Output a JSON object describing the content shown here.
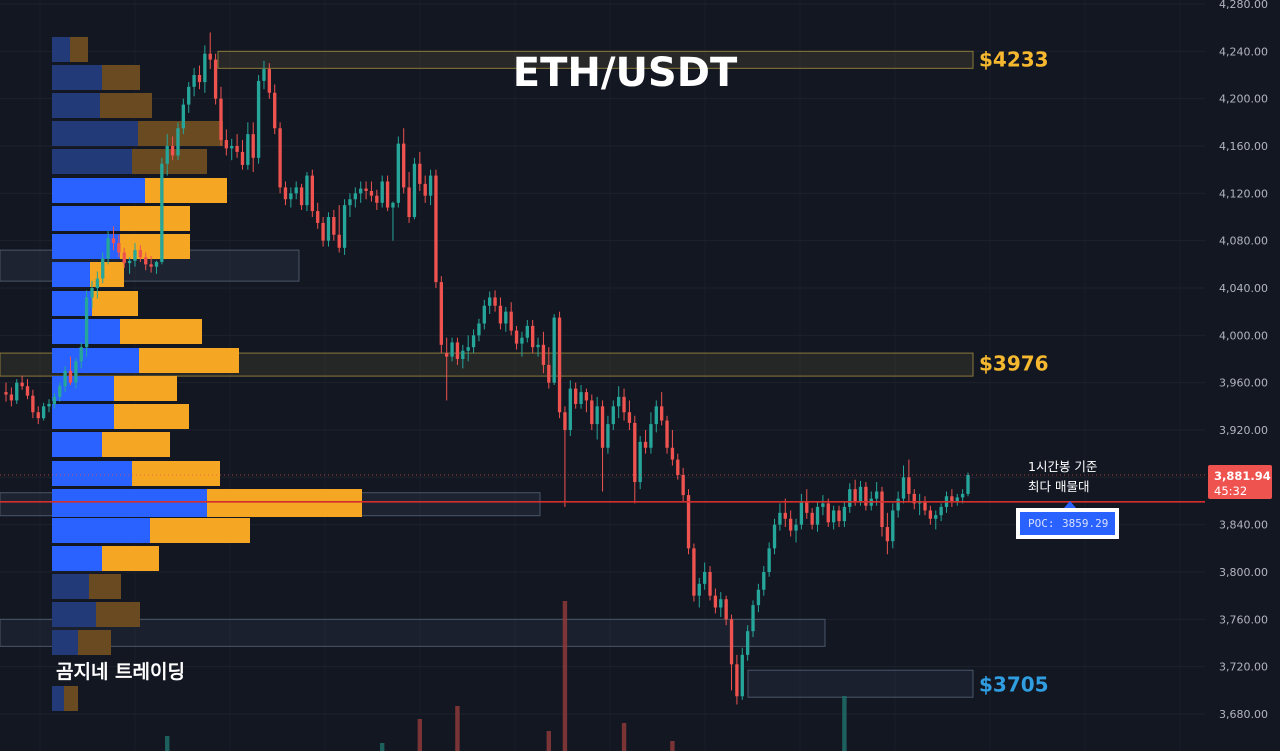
{
  "title": "ETH/USDT",
  "brand": "곰지네 트레이딩",
  "annotation": {
    "line1": "1시간봉 기준",
    "line2": "최다 매물대"
  },
  "poc": {
    "label": "POC:",
    "value": "3859.29"
  },
  "current_price": {
    "value": "3,881.94",
    "countdown": "45:32"
  },
  "zones": [
    {
      "label": "$4233",
      "price": 4233,
      "color": "#f5b82e"
    },
    {
      "label": "$3976",
      "price": 3976,
      "color": "#f5b82e"
    },
    {
      "label": "$3705",
      "price": 3705,
      "color": "#2f9de0"
    }
  ],
  "colors": {
    "background": "#131722",
    "up": "#26a69a",
    "down": "#ef5350",
    "buy_volume": "#2962ff",
    "sell_volume": "#f5a623",
    "poc_line": "#d32f2f"
  },
  "chart_data": {
    "type": "candlestick",
    "y_axis": {
      "range": [
        3665,
        4280
      ],
      "ticks": [
        "4,280.00",
        "4,240.00",
        "4,200.00",
        "4,160.00",
        "4,120.00",
        "4,080.00",
        "4,040.00",
        "4,000.00",
        "3,960.00",
        "3,920.00",
        "3,880.00",
        "3,840.00",
        "3,800.00",
        "3,760.00",
        "3,720.00",
        "3,680.00"
      ]
    },
    "series_ohlc": [
      [
        3952,
        3960,
        3944,
        3950
      ],
      [
        3950,
        3956,
        3940,
        3945
      ],
      [
        3945,
        3963,
        3942,
        3960
      ],
      [
        3960,
        3966,
        3954,
        3957
      ],
      [
        3957,
        3963,
        3946,
        3949
      ],
      [
        3949,
        3954,
        3930,
        3935
      ],
      [
        3935,
        3940,
        3925,
        3930
      ],
      [
        3930,
        3943,
        3928,
        3940
      ],
      [
        3940,
        3946,
        3935,
        3942
      ],
      [
        3942,
        3951,
        3938,
        3948
      ],
      [
        3948,
        3960,
        3944,
        3957
      ],
      [
        3957,
        3974,
        3952,
        3970
      ],
      [
        3970,
        3982,
        3958,
        3960
      ],
      [
        3960,
        3981,
        3955,
        3978
      ],
      [
        3978,
        3994,
        3972,
        3990
      ],
      [
        3990,
        4038,
        3982,
        4032
      ],
      [
        4032,
        4046,
        4023,
        4040
      ],
      [
        4040,
        4054,
        4031,
        4048
      ],
      [
        4048,
        4070,
        4044,
        4065
      ],
      [
        4065,
        4088,
        4060,
        4082
      ],
      [
        4082,
        4092,
        4072,
        4078
      ],
      [
        4078,
        4085,
        4066,
        4070
      ],
      [
        4070,
        4074,
        4057,
        4061
      ],
      [
        4061,
        4066,
        4052,
        4063
      ],
      [
        4063,
        4078,
        4058,
        4072
      ],
      [
        4072,
        4076,
        4062,
        4066
      ],
      [
        4066,
        4070,
        4055,
        4060
      ],
      [
        4060,
        4067,
        4053,
        4058
      ],
      [
        4058,
        4063,
        4052,
        4062
      ],
      [
        4062,
        4150,
        4060,
        4145
      ],
      [
        4145,
        4170,
        4135,
        4160
      ],
      [
        4160,
        4168,
        4148,
        4152
      ],
      [
        4152,
        4180,
        4148,
        4175
      ],
      [
        4175,
        4200,
        4170,
        4195
      ],
      [
        4195,
        4214,
        4188,
        4210
      ],
      [
        4210,
        4226,
        4202,
        4220
      ],
      [
        4220,
        4228,
        4208,
        4214
      ],
      [
        4214,
        4245,
        4205,
        4238
      ],
      [
        4238,
        4256,
        4225,
        4233
      ],
      [
        4233,
        4238,
        4195,
        4200
      ],
      [
        4200,
        4210,
        4160,
        4165
      ],
      [
        4165,
        4174,
        4152,
        4158
      ],
      [
        4158,
        4166,
        4148,
        4160
      ],
      [
        4160,
        4170,
        4150,
        4155
      ],
      [
        4155,
        4165,
        4140,
        4144
      ],
      [
        4144,
        4180,
        4140,
        4170
      ],
      [
        4170,
        4180,
        4138,
        4150
      ],
      [
        4150,
        4220,
        4145,
        4215
      ],
      [
        4215,
        4232,
        4208,
        4225
      ],
      [
        4225,
        4230,
        4200,
        4205
      ],
      [
        4205,
        4212,
        4170,
        4175
      ],
      [
        4175,
        4180,
        4120,
        4125
      ],
      [
        4125,
        4130,
        4110,
        4115
      ],
      [
        4115,
        4125,
        4108,
        4120
      ],
      [
        4120,
        4130,
        4115,
        4125
      ],
      [
        4125,
        4128,
        4106,
        4110
      ],
      [
        4110,
        4138,
        4105,
        4135
      ],
      [
        4135,
        4140,
        4100,
        4105
      ],
      [
        4105,
        4112,
        4090,
        4095
      ],
      [
        4095,
        4100,
        4075,
        4080
      ],
      [
        4080,
        4104,
        4075,
        4100
      ],
      [
        4100,
        4106,
        4080,
        4085
      ],
      [
        4085,
        4110,
        4070,
        4074
      ],
      [
        4074,
        4115,
        4068,
        4110
      ],
      [
        4110,
        4120,
        4100,
        4115
      ],
      [
        4115,
        4125,
        4108,
        4120
      ],
      [
        4120,
        4130,
        4112,
        4124
      ],
      [
        4124,
        4130,
        4115,
        4122
      ],
      [
        4122,
        4130,
        4113,
        4118
      ],
      [
        4118,
        4123,
        4106,
        4112
      ],
      [
        4112,
        4135,
        4108,
        4130
      ],
      [
        4130,
        4135,
        4105,
        4108
      ],
      [
        4108,
        4113,
        4080,
        4112
      ],
      [
        4112,
        4168,
        4108,
        4162
      ],
      [
        4162,
        4175,
        4120,
        4125
      ],
      [
        4125,
        4138,
        4095,
        4100
      ],
      [
        4100,
        4150,
        4098,
        4145
      ],
      [
        4145,
        4155,
        4122,
        4128
      ],
      [
        4128,
        4135,
        4112,
        4118
      ],
      [
        4118,
        4140,
        4110,
        4135
      ],
      [
        4135,
        4140,
        4040,
        4045
      ],
      [
        4045,
        4050,
        3985,
        3992
      ],
      [
        3985,
        3998,
        3945,
        3982
      ],
      [
        3982,
        3998,
        3978,
        3994
      ],
      [
        3994,
        3998,
        3975,
        3980
      ],
      [
        3980,
        3992,
        3972,
        3987
      ],
      [
        3987,
        4000,
        3978,
        3990
      ],
      [
        3990,
        4005,
        3985,
        4000
      ],
      [
        4000,
        4014,
        3995,
        4010
      ],
      [
        4010,
        4030,
        4005,
        4025
      ],
      [
        4025,
        4037,
        4018,
        4032
      ],
      [
        4032,
        4038,
        4020,
        4025
      ],
      [
        4025,
        4032,
        4005,
        4010
      ],
      [
        4010,
        4024,
        4003,
        4020
      ],
      [
        4020,
        4028,
        4000,
        4004
      ],
      [
        4004,
        4008,
        3988,
        3993
      ],
      [
        3993,
        4003,
        3982,
        3998
      ],
      [
        3998,
        4013,
        3994,
        4008
      ],
      [
        4008,
        4013,
        3985,
        3990
      ],
      [
        3990,
        3998,
        3982,
        3992
      ],
      [
        3992,
        4003,
        3968,
        3975
      ],
      [
        3975,
        3990,
        3955,
        3960
      ],
      [
        3960,
        4018,
        3958,
        4015
      ],
      [
        4015,
        4020,
        3930,
        3935
      ],
      [
        3935,
        3940,
        3855,
        3920
      ],
      [
        3920,
        3962,
        3915,
        3955
      ],
      [
        3955,
        3960,
        3938,
        3942
      ],
      [
        3942,
        3958,
        3938,
        3952
      ],
      [
        3952,
        3955,
        3935,
        3945
      ],
      [
        3945,
        3950,
        3920,
        3925
      ],
      [
        3925,
        3948,
        3912,
        3940
      ],
      [
        3940,
        3945,
        3868,
        3905
      ],
      [
        3905,
        3932,
        3900,
        3925
      ],
      [
        3925,
        3945,
        3920,
        3940
      ],
      [
        3940,
        3957,
        3930,
        3948
      ],
      [
        3948,
        3955,
        3928,
        3935
      ],
      [
        3935,
        3945,
        3920,
        3926
      ],
      [
        3926,
        3932,
        3858,
        3876
      ],
      [
        3876,
        3915,
        3870,
        3910
      ],
      [
        3910,
        3920,
        3900,
        3905
      ],
      [
        3905,
        3935,
        3900,
        3925
      ],
      [
        3925,
        3945,
        3918,
        3940
      ],
      [
        3940,
        3952,
        3924,
        3928
      ],
      [
        3928,
        3932,
        3900,
        3905
      ],
      [
        3905,
        3920,
        3890,
        3895
      ],
      [
        3895,
        3900,
        3878,
        3882
      ],
      [
        3882,
        3888,
        3860,
        3865
      ],
      [
        3865,
        3870,
        3815,
        3820
      ],
      [
        3820,
        3824,
        3775,
        3780
      ],
      [
        3780,
        3795,
        3770,
        3790
      ],
      [
        3790,
        3808,
        3785,
        3800
      ],
      [
        3800,
        3805,
        3776,
        3780
      ],
      [
        3780,
        3786,
        3765,
        3770
      ],
      [
        3770,
        3783,
        3762,
        3777
      ],
      [
        3777,
        3780,
        3755,
        3760
      ],
      [
        3760,
        3764,
        3700,
        3722
      ],
      [
        3722,
        3730,
        3688,
        3695
      ],
      [
        3695,
        3736,
        3692,
        3730
      ],
      [
        3730,
        3755,
        3725,
        3750
      ],
      [
        3750,
        3776,
        3745,
        3772
      ],
      [
        3772,
        3790,
        3766,
        3785
      ],
      [
        3785,
        3805,
        3780,
        3800
      ],
      [
        3800,
        3825,
        3796,
        3820
      ],
      [
        3820,
        3845,
        3815,
        3840
      ],
      [
        3840,
        3858,
        3835,
        3850
      ],
      [
        3850,
        3862,
        3838,
        3845
      ],
      [
        3845,
        3852,
        3830,
        3835
      ],
      [
        3835,
        3845,
        3825,
        3840
      ],
      [
        3840,
        3866,
        3836,
        3860
      ],
      [
        3860,
        3870,
        3845,
        3850
      ],
      [
        3850,
        3854,
        3836,
        3840
      ],
      [
        3840,
        3860,
        3834,
        3855
      ],
      [
        3855,
        3865,
        3848,
        3858
      ],
      [
        3858,
        3862,
        3838,
        3842
      ],
      [
        3842,
        3856,
        3836,
        3852
      ],
      [
        3852,
        3856,
        3838,
        3843
      ],
      [
        3843,
        3860,
        3838,
        3855
      ],
      [
        3855,
        3875,
        3850,
        3870
      ],
      [
        3870,
        3878,
        3856,
        3860
      ],
      [
        3860,
        3877,
        3856,
        3872
      ],
      [
        3872,
        3876,
        3852,
        3856
      ],
      [
        3856,
        3868,
        3852,
        3862
      ],
      [
        3862,
        3876,
        3856,
        3868
      ],
      [
        3868,
        3872,
        3830,
        3838
      ],
      [
        3838,
        3850,
        3815,
        3826
      ],
      [
        3826,
        3858,
        3820,
        3852
      ],
      [
        3852,
        3868,
        3846,
        3862
      ],
      [
        3862,
        3890,
        3858,
        3880
      ],
      [
        3880,
        3895,
        3860,
        3866
      ],
      [
        3866,
        3870,
        3853,
        3858
      ],
      [
        3858,
        3866,
        3848,
        3860
      ],
      [
        3860,
        3864,
        3848,
        3852
      ],
      [
        3852,
        3856,
        3840,
        3845
      ],
      [
        3845,
        3852,
        3836,
        3848
      ],
      [
        3848,
        3858,
        3843,
        3855
      ],
      [
        3855,
        3868,
        3850,
        3864
      ],
      [
        3864,
        3870,
        3855,
        3860
      ],
      [
        3860,
        3866,
        3856,
        3863
      ],
      [
        3863,
        3870,
        3858,
        3866
      ],
      [
        3866,
        3884,
        3864,
        3882
      ]
    ],
    "volume_profile": [
      {
        "price": 4245,
        "buy": 18,
        "sell": 18
      },
      {
        "price": 4222,
        "buy": 50,
        "sell": 38
      },
      {
        "price": 4200,
        "buy": 48,
        "sell": 52
      },
      {
        "price": 4178,
        "buy": 86,
        "sell": 85
      },
      {
        "price": 4155,
        "buy": 80,
        "sell": 75
      },
      {
        "price": 4130,
        "buy": 93,
        "sell": 82
      },
      {
        "price": 4108,
        "buy": 68,
        "sell": 70
      },
      {
        "price": 4085,
        "buy": 68,
        "sell": 70
      },
      {
        "price": 4060,
        "buy": 38,
        "sell": 34
      },
      {
        "price": 4037,
        "buy": 40,
        "sell": 46
      },
      {
        "price": 4013,
        "buy": 68,
        "sell": 82
      },
      {
        "price": 3990,
        "buy": 87,
        "sell": 100
      },
      {
        "price": 3967,
        "buy": 62,
        "sell": 63
      },
      {
        "price": 3944,
        "buy": 62,
        "sell": 75
      },
      {
        "price": 3921,
        "buy": 50,
        "sell": 68
      },
      {
        "price": 3898,
        "buy": 80,
        "sell": 88
      },
      {
        "price": 3859,
        "buy": 155,
        "sell": 155
      },
      {
        "price": 3852,
        "buy": 98,
        "sell": 100
      },
      {
        "price": 3829,
        "buy": 50,
        "sell": 57
      },
      {
        "price": 3806,
        "buy": 37,
        "sell": 32
      },
      {
        "price": 3783,
        "buy": 44,
        "sell": 44
      },
      {
        "price": 3760,
        "buy": 26,
        "sell": 33
      },
      {
        "price": 3737,
        "buy": 12,
        "sell": 14
      }
    ],
    "volume_bars": [
      {
        "i": 104,
        "v": 150
      },
      {
        "i": 84,
        "v": 45
      },
      {
        "i": 77,
        "v": 32
      },
      {
        "i": 101,
        "v": 20
      },
      {
        "i": 115,
        "v": 28
      },
      {
        "i": 156,
        "v": 55
      },
      {
        "i": 30,
        "v": 15
      },
      {
        "i": 70,
        "v": 8
      },
      {
        "i": 124,
        "v": 10
      }
    ]
  }
}
